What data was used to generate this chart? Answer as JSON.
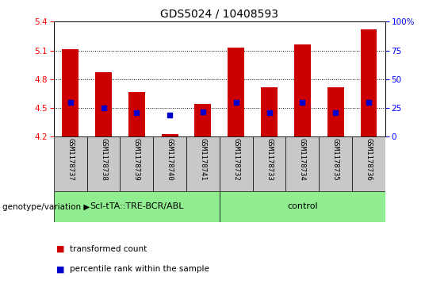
{
  "title": "GDS5024 / 10408593",
  "samples": [
    "GSM1178737",
    "GSM1178738",
    "GSM1178739",
    "GSM1178740",
    "GSM1178741",
    "GSM1178732",
    "GSM1178733",
    "GSM1178734",
    "GSM1178735",
    "GSM1178736"
  ],
  "transformed_count": [
    5.11,
    4.87,
    4.67,
    4.23,
    4.54,
    5.13,
    4.72,
    5.16,
    4.72,
    5.32
  ],
  "percentile_rank_val": [
    4.56,
    4.5,
    4.45,
    4.43,
    4.46,
    4.56,
    4.45,
    4.56,
    4.45,
    4.56
  ],
  "ylim": [
    4.2,
    5.4
  ],
  "yticks": [
    4.2,
    4.5,
    4.8,
    5.1,
    5.4
  ],
  "y2lim": [
    0,
    100
  ],
  "y2ticks": [
    0,
    25,
    50,
    75,
    100
  ],
  "y2labels": [
    "0",
    "25",
    "50",
    "75",
    "100%"
  ],
  "groups": [
    {
      "label": "Scl-tTA::TRE-BCR/ABL",
      "start": 0,
      "end": 4,
      "color": "#90ee90"
    },
    {
      "label": "control",
      "start": 5,
      "end": 9,
      "color": "#90ee90"
    }
  ],
  "group_label_prefix": "genotype/variation ▶",
  "bar_color": "#cc0000",
  "dot_color": "#0000cc",
  "bar_width": 0.5,
  "dot_size": 25,
  "background_xtick": "#c8c8c8",
  "legend_items": [
    {
      "label": "transformed count",
      "color": "#cc0000"
    },
    {
      "label": "percentile rank within the sample",
      "color": "#0000cc"
    }
  ],
  "grid_yticks": [
    4.5,
    4.8,
    5.1
  ],
  "title_fontsize": 10,
  "tick_fontsize": 7.5,
  "sample_fontsize": 6.5,
  "legend_fontsize": 7.5,
  "geno_fontsize": 8
}
